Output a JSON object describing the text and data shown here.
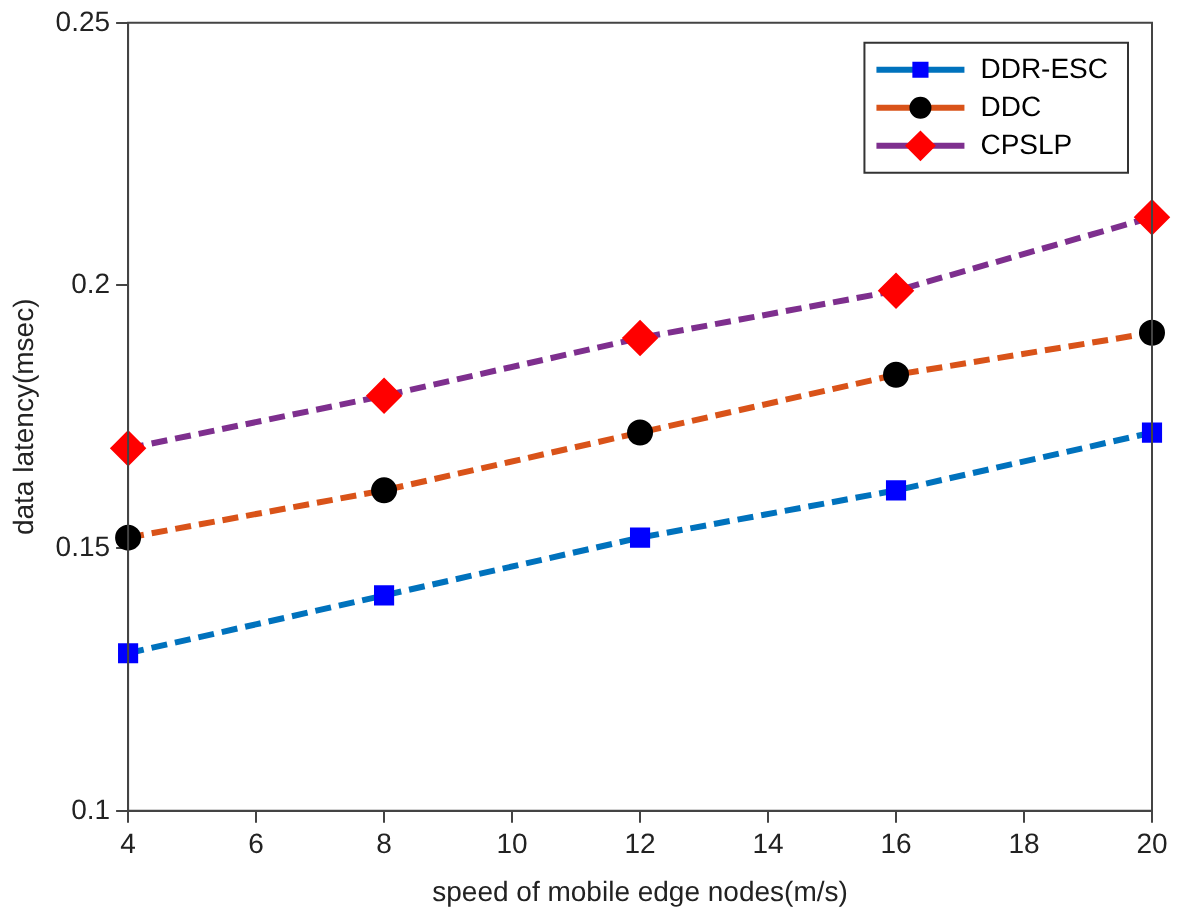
{
  "chart_data": {
    "type": "line",
    "xlabel": "speed of mobile edge nodes(m/s)",
    "ylabel": "data latency(msec)",
    "x": [
      4,
      8,
      12,
      16,
      20
    ],
    "series": [
      {
        "name": "DDR-ESC",
        "color": "#0072bd",
        "colors": [
          "#0000ff",
          "#0000ff",
          "#0000ff",
          "#0000ff",
          "#0000ff"
        ],
        "marker": "square",
        "values": [
          0.13,
          0.141,
          0.152,
          0.161,
          0.172
        ]
      },
      {
        "name": "DDC",
        "color": "#d95319",
        "colors": [
          "#000000",
          "#000000",
          "#000000",
          "#000000",
          "#000000"
        ],
        "marker": "circle",
        "values": [
          0.152,
          0.161,
          0.172,
          0.183,
          0.191
        ]
      },
      {
        "name": "CPSLP",
        "color": "#7e2f8e",
        "colors": [
          "#ff0000",
          "#ff0000",
          "#ff0000",
          "#ff0000",
          "#ff0000"
        ],
        "marker": "diamond",
        "values": [
          0.169,
          0.179,
          0.19,
          0.199,
          0.213
        ]
      }
    ],
    "xlim": [
      4,
      20
    ],
    "xticks": [
      4,
      6,
      8,
      10,
      12,
      14,
      16,
      18,
      20
    ],
    "ylim": [
      0.1,
      0.25
    ],
    "yticks": [
      0.1,
      0.15,
      0.2,
      0.25
    ],
    "grid": false,
    "legend": "top right",
    "line_style": "dashed"
  }
}
